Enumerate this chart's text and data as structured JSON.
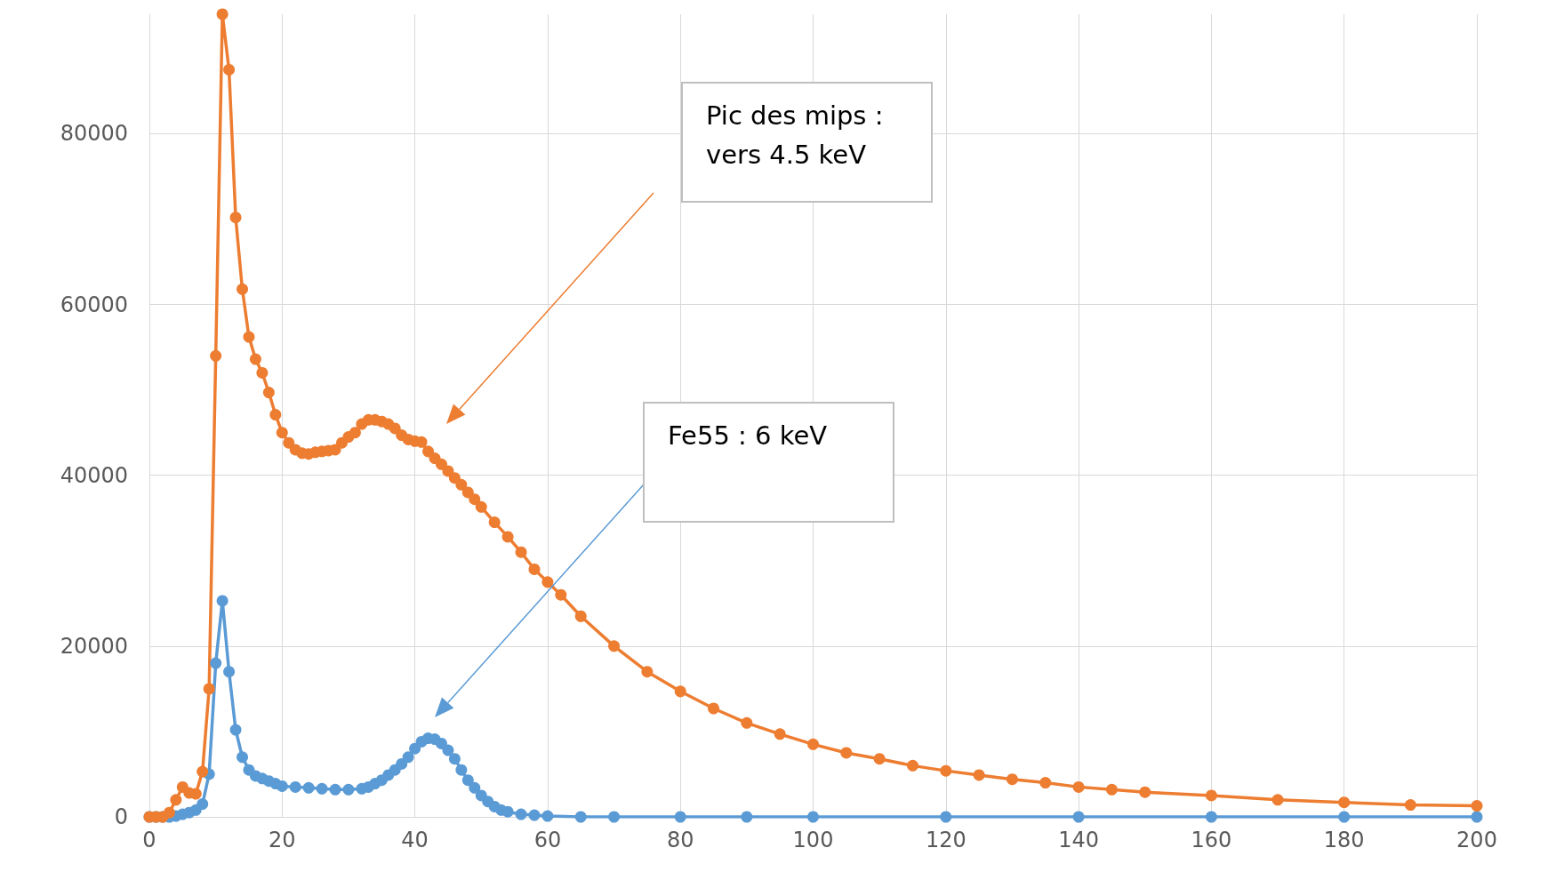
{
  "chart_data": {
    "type": "line",
    "xlim": [
      0,
      200
    ],
    "xticks": [
      0,
      20,
      40,
      60,
      80,
      100,
      120,
      140,
      160,
      180,
      200
    ],
    "ylim": [
      0,
      94000
    ],
    "yticks": [
      0,
      20000,
      40000,
      60000,
      80000
    ],
    "grid": true,
    "marker": "circle",
    "line_style": "solid",
    "series": [
      {
        "color": "#5b9bd5",
        "x": [
          0,
          1,
          2,
          3,
          4,
          5,
          6,
          7,
          8,
          9,
          10,
          11,
          12,
          13,
          14,
          15,
          16,
          17,
          18,
          19,
          20,
          22,
          24,
          26,
          28,
          30,
          32,
          33,
          34,
          35,
          36,
          37,
          38,
          39,
          40,
          41,
          42,
          43,
          44,
          45,
          46,
          47,
          48,
          49,
          50,
          51,
          52,
          53,
          54,
          56,
          58,
          60,
          65,
          70,
          80,
          90,
          100,
          120,
          140,
          160,
          180,
          200
        ],
        "values": [
          0,
          0,
          0,
          0,
          100,
          300,
          500,
          800,
          1500,
          5000,
          18000,
          25300,
          17000,
          10200,
          7000,
          5500,
          4800,
          4500,
          4200,
          3900,
          3600,
          3500,
          3400,
          3300,
          3200,
          3200,
          3300,
          3500,
          3900,
          4300,
          4900,
          5500,
          6200,
          7000,
          8000,
          8800,
          9200,
          9100,
          8600,
          7800,
          6800,
          5500,
          4300,
          3400,
          2500,
          1800,
          1200,
          800,
          600,
          300,
          200,
          100,
          0,
          0,
          0,
          0,
          0,
          0,
          0,
          0,
          0,
          0
        ]
      },
      {
        "color": "#ed7d31",
        "x": [
          0,
          1,
          2,
          3,
          4,
          5,
          6,
          7,
          8,
          9,
          10,
          11,
          12,
          13,
          14,
          15,
          16,
          17,
          18,
          19,
          20,
          21,
          22,
          23,
          24,
          25,
          26,
          27,
          28,
          29,
          30,
          31,
          32,
          33,
          34,
          35,
          36,
          37,
          38,
          39,
          40,
          41,
          42,
          43,
          44,
          45,
          46,
          47,
          48,
          49,
          50,
          52,
          54,
          56,
          58,
          60,
          62,
          65,
          70,
          75,
          80,
          85,
          90,
          95,
          100,
          105,
          110,
          115,
          120,
          125,
          130,
          135,
          140,
          145,
          150,
          160,
          170,
          180,
          190,
          200
        ],
        "values": [
          0,
          0,
          0,
          500,
          2000,
          3500,
          2800,
          2700,
          5300,
          15000,
          54000,
          94000,
          87500,
          70200,
          61800,
          56200,
          53600,
          52000,
          49700,
          47100,
          45000,
          43800,
          43000,
          42600,
          42500,
          42700,
          42800,
          42900,
          43000,
          43800,
          44500,
          45000,
          46000,
          46500,
          46500,
          46300,
          46000,
          45500,
          44700,
          44200,
          44000,
          43900,
          42800,
          42000,
          41300,
          40500,
          39700,
          38900,
          38000,
          37200,
          36300,
          34500,
          32800,
          31000,
          29000,
          27500,
          26000,
          23500,
          20000,
          17000,
          14700,
          12700,
          11000,
          9700,
          8500,
          7500,
          6800,
          6000,
          5400,
          4900,
          4400,
          4000,
          3500,
          3200,
          2900,
          2500,
          2000,
          1700,
          1400,
          1300
        ]
      }
    ],
    "annotations": [
      "Pic des mips : vers 4.5 keV",
      "Fe55 : 6 keV"
    ]
  }
}
